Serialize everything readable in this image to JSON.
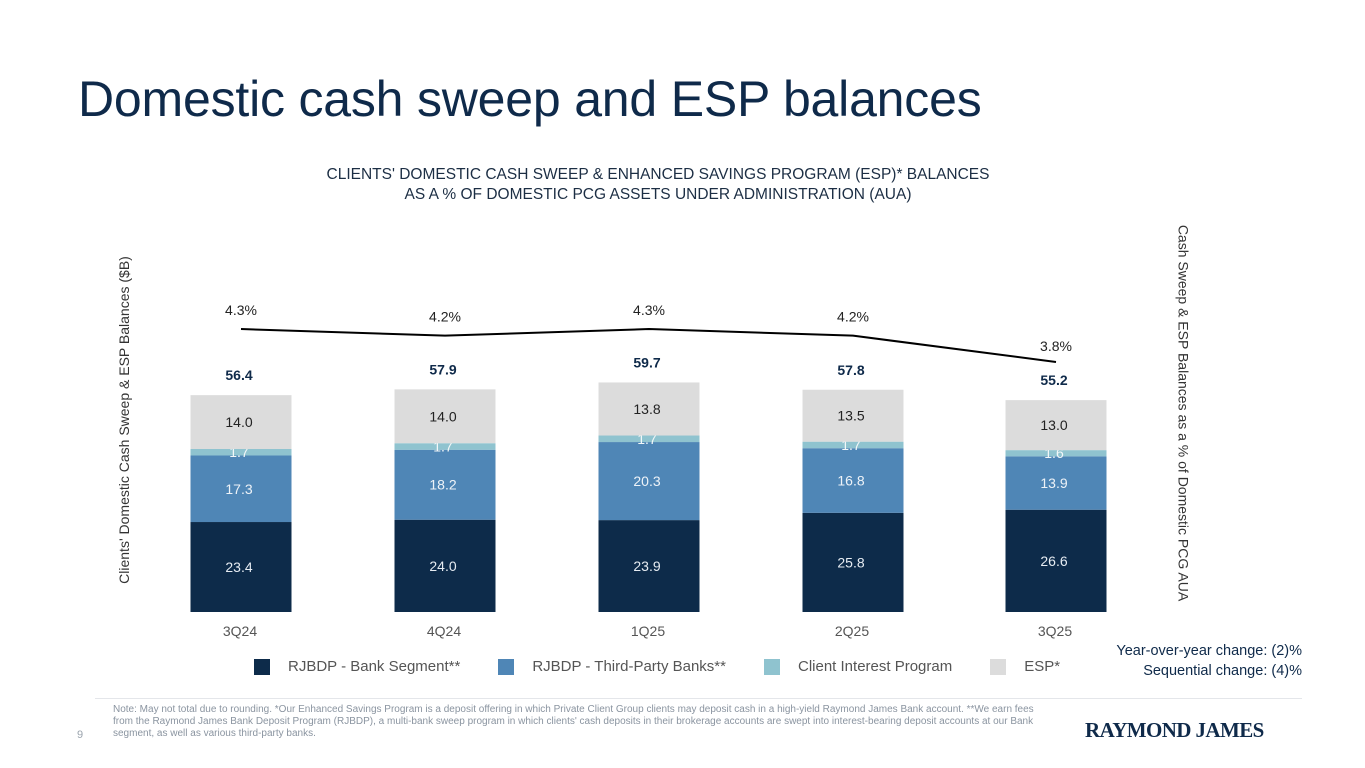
{
  "page": {
    "title": "Domestic cash sweep and ESP balances",
    "page_number": "9",
    "logo_text": "RAYMOND JAMES"
  },
  "changes": {
    "yoy": "Year-over-year change: (2)%",
    "sequential": "Sequential change: (4)%"
  },
  "note": "Note: May not total due to rounding. *Our Enhanced Savings Program is a deposit offering in which Private Client Group clients may deposit cash in a high-yield Raymond James Bank account. **We earn fees from the Raymond James Bank Deposit Program (RJBDP), a multi-bank sweep program in which clients' cash deposits in their brokerage accounts are swept into interest-bearing deposit accounts at our Bank segment, as well as various third-party banks.",
  "chart_data": {
    "type": "bar",
    "stacked": true,
    "title_line1": "CLIENTS' DOMESTIC CASH SWEEP & ENHANCED SAVINGS PROGRAM (ESP)* BALANCES",
    "title_line2": "AS A % OF DOMESTIC PCG ASSETS UNDER ADMINISTRATION (AUA)",
    "ylabel": "Clients' Domestic Cash Sweep & ESP Balances ($B)",
    "y2label": "Cash Sweep & ESP Balances as a % of Domestic PCG AUA",
    "categories": [
      "3Q24",
      "4Q24",
      "1Q25",
      "2Q25",
      "3Q25"
    ],
    "series": [
      {
        "name": "RJBDP - Bank Segment**",
        "color": "#0d2b4a",
        "label_color": "#e6ecf2",
        "values": [
          23.4,
          24.0,
          23.9,
          25.8,
          26.6
        ]
      },
      {
        "name": "RJBDP - Third-Party Banks**",
        "color": "#4f86b6",
        "label_color": "#eef3f8",
        "values": [
          17.3,
          18.2,
          20.3,
          16.8,
          13.9
        ]
      },
      {
        "name": "Client Interest Program",
        "color": "#8fc3cf",
        "label_color": "#f2f7f8",
        "values": [
          1.7,
          1.7,
          1.7,
          1.7,
          1.6
        ]
      },
      {
        "name": "ESP*",
        "color": "#dcdcdc",
        "label_color": "#222222",
        "values": [
          14.0,
          14.0,
          13.8,
          13.5,
          13.0
        ]
      }
    ],
    "totals": [
      56.4,
      57.9,
      59.7,
      57.8,
      55.2
    ],
    "totals_color": "#0f2a4a",
    "line": {
      "name": "Cash Sweep & ESP Balances as a % of Domestic PCG AUA",
      "values": [
        4.3,
        4.2,
        4.3,
        4.2,
        3.8
      ],
      "labels": [
        "4.3%",
        "4.2%",
        "4.3%",
        "4.2%",
        "3.8%"
      ],
      "color": "#000000"
    },
    "ylim": [
      0,
      80
    ],
    "y2lim": [
      0,
      5.5
    ],
    "grid": false,
    "legend_position": "bottom"
  }
}
